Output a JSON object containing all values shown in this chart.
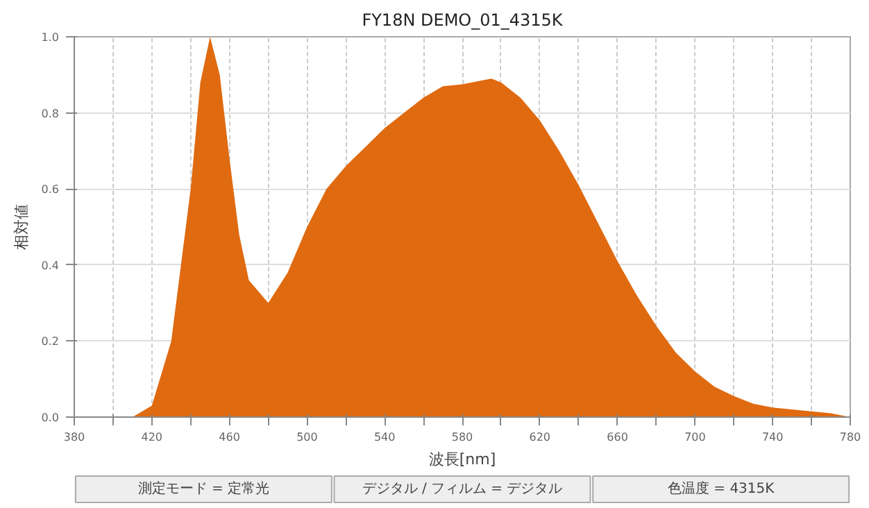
{
  "chart_data": {
    "type": "area",
    "title": "FY18N DEMO_01_4315K",
    "xlabel": "波長[nm]",
    "ylabel": "相対値",
    "x": [
      380,
      410,
      420,
      430,
      440,
      445,
      450,
      455,
      460,
      465,
      470,
      480,
      490,
      500,
      510,
      520,
      530,
      540,
      550,
      560,
      570,
      580,
      590,
      595,
      600,
      610,
      620,
      630,
      640,
      650,
      660,
      670,
      680,
      690,
      700,
      710,
      720,
      730,
      740,
      750,
      760,
      770,
      780
    ],
    "series": [
      {
        "color": "#e06a10",
        "values": [
          0,
          0,
          0.03,
          0.2,
          0.6,
          0.88,
          1.0,
          0.9,
          0.68,
          0.48,
          0.36,
          0.3,
          0.38,
          0.5,
          0.6,
          0.66,
          0.71,
          0.76,
          0.8,
          0.84,
          0.87,
          0.875,
          0.885,
          0.89,
          0.88,
          0.84,
          0.78,
          0.7,
          0.61,
          0.51,
          0.41,
          0.32,
          0.24,
          0.17,
          0.12,
          0.08,
          0.055,
          0.035,
          0.025,
          0.02,
          0.015,
          0.01,
          0
        ]
      }
    ],
    "xlim": [
      380,
      780
    ],
    "ylim": [
      0,
      1.0
    ],
    "xticks": [
      380,
      {
        "value": 400,
        "label": null
      },
      420,
      {
        "value": 440,
        "label": null
      },
      460,
      {
        "value": 480,
        "label": null
      },
      500,
      {
        "value": 520,
        "label": null
      },
      540,
      {
        "value": 560,
        "label": null
      },
      580,
      {
        "value": 600,
        "label": null
      },
      620,
      {
        "value": 640,
        "label": null
      },
      660,
      {
        "value": 680,
        "label": null
      },
      700,
      {
        "value": 720,
        "label": null
      },
      740,
      {
        "value": 760,
        "label": null
      },
      780
    ],
    "yticks": [
      {
        "value": 0,
        "label": "0.0"
      },
      {
        "value": 0.2,
        "label": "0.2"
      },
      {
        "value": 0.4,
        "label": "0.4"
      },
      {
        "value": 0.6,
        "label": "0.6"
      },
      {
        "value": 0.8,
        "label": "0.8"
      },
      {
        "value": 1.0,
        "label": "1.0"
      }
    ],
    "grid": true,
    "annotations": [
      "測定モード = 定常光",
      "デジタル / フィルム = デジタル",
      "色温度 = 4315K"
    ]
  }
}
